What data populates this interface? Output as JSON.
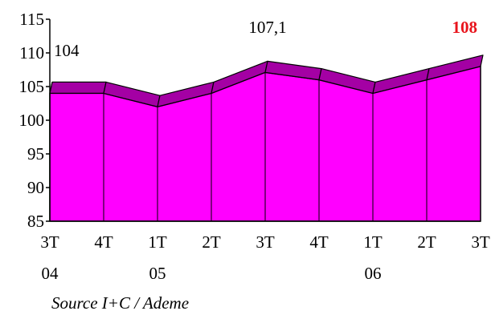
{
  "chart_data": {
    "type": "area",
    "title": "",
    "xlabel": "",
    "ylabel": "",
    "ylim": [
      85,
      115
    ],
    "yticks": [
      85,
      90,
      95,
      100,
      105,
      110,
      115
    ],
    "grid": false,
    "legend": "none",
    "categories": [
      {
        "q": "3T",
        "y": "04"
      },
      {
        "q": "4T",
        "y": ""
      },
      {
        "q": "1T",
        "y": "05"
      },
      {
        "q": "2T",
        "y": ""
      },
      {
        "q": "3T",
        "y": ""
      },
      {
        "q": "4T",
        "y": ""
      },
      {
        "q": "1T",
        "y": "06"
      },
      {
        "q": "2T",
        "y": ""
      },
      {
        "q": "3T",
        "y": ""
      }
    ],
    "values": [
      104,
      104,
      102,
      104,
      107.1,
      106,
      104,
      106,
      108
    ],
    "data_labels": [
      {
        "index": 0,
        "text": "104",
        "highlight": false
      },
      {
        "index": 4,
        "text": "107,1",
        "highlight": false
      },
      {
        "index": 8,
        "text": "108",
        "highlight": true
      }
    ],
    "colors": {
      "area_fill": "#ff00ff",
      "top_band": "#a400a4",
      "outline": "#000000",
      "highlight_label": "#e8141c"
    }
  },
  "source": "Source I+C / Ademe"
}
